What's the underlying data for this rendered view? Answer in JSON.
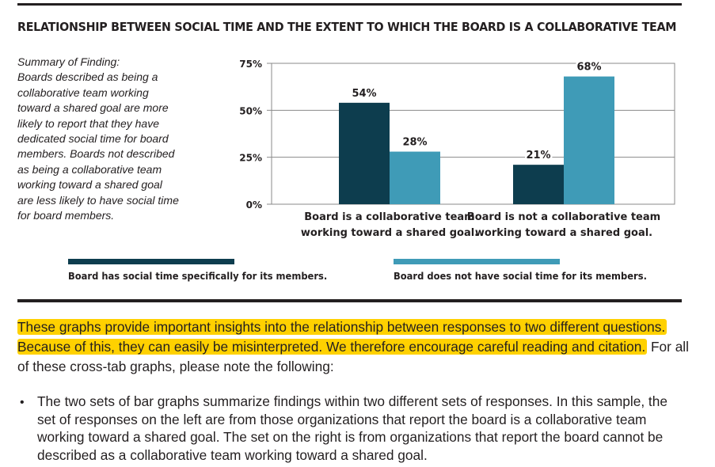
{
  "chart_title": "RELATIONSHIP BETWEEN SOCIAL TIME AND THE EXTENT TO WHICH THE BOARD IS A COLLABORATIVE TEAM",
  "summary_lines": [
    "Summary of Finding:",
    "Boards described as being a",
    "collaborative team working",
    "toward a shared goal are more",
    "likely to report that they have",
    "dedicated social time for board",
    "members. Boards not described",
    "as being a collaborative team",
    "working toward a shared goal",
    "are less likely to have social time",
    "for board members."
  ],
  "legend": [
    {
      "label": "Board has social time specifically for its members.",
      "color": "#0d3d4e"
    },
    {
      "label": "Board does not have social time for its members.",
      "color": "#3f9bb7"
    }
  ],
  "caution": {
    "highlighted": "These graphs provide important insights into the relationship between responses to two different questions. Because of this, they can easily be misinterpreted. We therefore encourage careful reading and citation.",
    "rest": " For all of these cross-tab graphs, please note the following:"
  },
  "bullet": {
    "marker": "•",
    "text": "The two sets of bar graphs summarize findings within two different sets of responses. In this sample, the set of responses on the left are from those organizations that report the board is a collaborative team working toward a shared goal. The set on the right is from organizations that report the board cannot be described as a collaborative team working toward a shared goal."
  },
  "chart_data": {
    "type": "bar",
    "title": "RELATIONSHIP BETWEEN SOCIAL TIME AND THE EXTENT TO WHICH THE BOARD IS A COLLABORATIVE TEAM",
    "categories": [
      [
        "Board is a collaborative team",
        "working toward a shared goal."
      ],
      [
        "Board is not a collaborative team",
        "working toward a shared goal."
      ]
    ],
    "series": [
      {
        "name": "Board has social time specifically for its members.",
        "values": [
          54,
          21
        ],
        "labels": [
          "54%",
          "21%"
        ],
        "color": "#0d3d4e"
      },
      {
        "name": "Board does not have social time for its members.",
        "values": [
          28,
          68
        ],
        "labels": [
          "28%",
          "68%"
        ],
        "color": "#3f9bb7"
      }
    ],
    "yticks": [
      0,
      25,
      50,
      75
    ],
    "ytick_labels": [
      "0%",
      "25%",
      "50%",
      "75%"
    ],
    "ylim": [
      0,
      75
    ],
    "grid": true,
    "xlabel": "",
    "ylabel": ""
  }
}
